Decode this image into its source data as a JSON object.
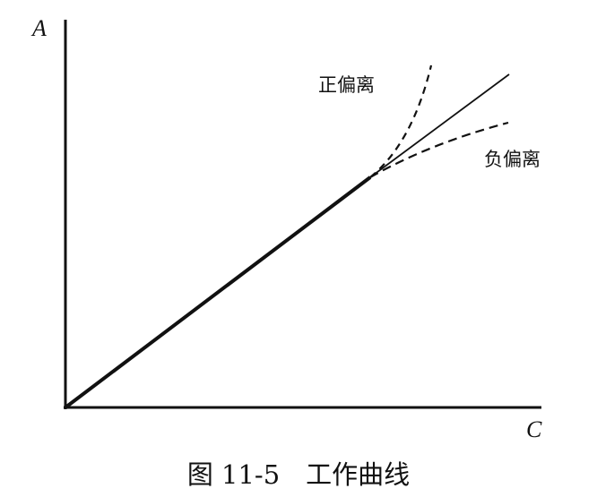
{
  "axes": {
    "y_label": "A",
    "x_label": "C"
  },
  "curves": {
    "positive_deviation": "正偏离",
    "negative_deviation": "负偏离"
  },
  "caption": "图 11-5　工作曲线"
}
